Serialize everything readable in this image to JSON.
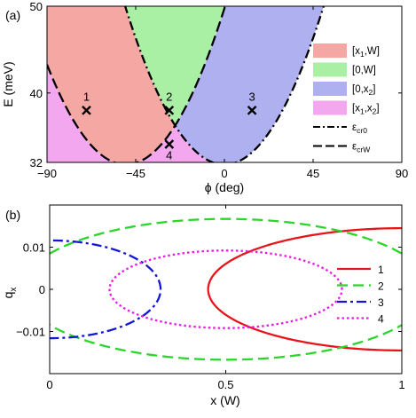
{
  "chart_data": [
    {
      "panel": "(a)",
      "type": "area",
      "xlabel": "ϕ (deg)",
      "ylabel": "E (meV)",
      "xlim": [
        -90,
        90
      ],
      "ylim": [
        32,
        50
      ],
      "xticks": [
        -90,
        -45,
        0,
        45,
        90
      ],
      "yticks": [
        40,
        50
      ],
      "ytick_labels": {
        "40": "40",
        "50": "50",
        "32": ""
      },
      "regions": [
        {
          "name": "[x1,W]",
          "sub": "1",
          "color": "#f4a7a3"
        },
        {
          "name": "[0,W]",
          "sub": "",
          "color": "#a9f0a4"
        },
        {
          "name": "[0,x2]",
          "sub": "2",
          "color": "#aeb0f0"
        },
        {
          "name": "[x1,x2]",
          "sub": "1,2",
          "color": "#f3a7ef"
        }
      ],
      "curves": [
        {
          "name": "εcr0",
          "style": "dash-dot",
          "formula": "E = 31.75 + 0.0072*phi^2"
        },
        {
          "name": "εcrW",
          "style": "dashed",
          "formula": "E = 31.75 + 0.0072*(phi+50)^2"
        }
      ],
      "points": [
        {
          "label": "1",
          "phi": -70,
          "E": 38
        },
        {
          "label": "2",
          "phi": -28,
          "E": 38
        },
        {
          "label": "3",
          "phi": 14,
          "E": 38
        },
        {
          "label": "4",
          "phi": -28,
          "E": 34.1
        }
      ],
      "legend": [
        {
          "text": "[x",
          "sub": "1",
          "tail": ",W]"
        },
        {
          "text": "[0,W]",
          "sub": "",
          "tail": ""
        },
        {
          "text": "[0,x",
          "sub": "2",
          "tail": "]"
        },
        {
          "text": "[x",
          "sub": "1",
          "tail": ",x",
          "sub2": "2",
          "tail2": "]"
        },
        {
          "text": "ε",
          "sub": "cr0",
          "tail": ""
        },
        {
          "text": "ε",
          "sub": "crW",
          "tail": ""
        }
      ],
      "legend_position": "right"
    },
    {
      "panel": "(b)",
      "type": "line",
      "xlabel": "x (W)",
      "ylabel": "q",
      "ylabel_sub": "x",
      "xlim": [
        0,
        1
      ],
      "ylim": [
        -0.02,
        0.02
      ],
      "xticks": [
        0,
        0.5,
        1
      ],
      "yticks": [
        0.01,
        0,
        -0.01
      ],
      "series": [
        {
          "name": "1",
          "color": "#e8141a",
          "style": "solid",
          "center_x": 1.0,
          "semi_x": 0.55,
          "semi_q": 0.0145
        },
        {
          "name": "2",
          "color": "#2bd62b",
          "style": "dashed",
          "center_x": 0.5,
          "semi_x": 0.58,
          "semi_q": 0.0167
        },
        {
          "name": "3",
          "color": "#1515d6",
          "style": "dash-dot",
          "center_x": 0.0,
          "semi_x": 0.315,
          "semi_q": 0.0116
        },
        {
          "name": "4",
          "color": "#ea1ae6",
          "style": "dotted",
          "center_x": 0.5,
          "semi_x": 0.33,
          "semi_q": 0.0092
        }
      ],
      "legend_position": "right"
    }
  ]
}
